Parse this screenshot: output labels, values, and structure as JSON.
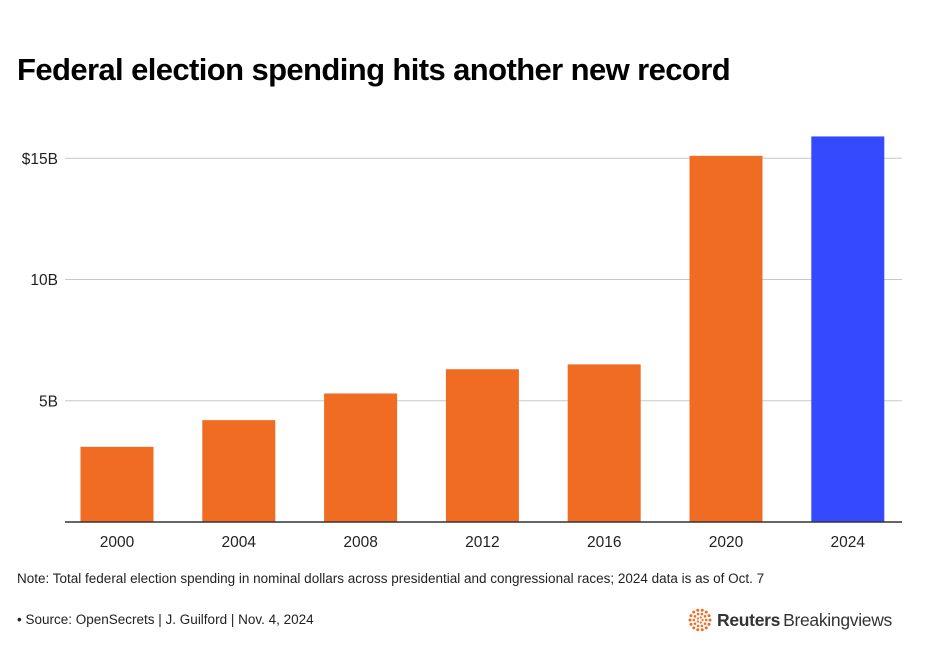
{
  "title": "Federal election spending hits another new record",
  "note": "Note: Total federal election spending in nominal dollars across presidential and congressional races; 2024 data is as of Oct. 7",
  "source": "• Source: OpenSecrets | J. Guilford | Nov. 4, 2024",
  "brand": {
    "name": "Reuters",
    "product": "Breakingviews",
    "logo_icon": "reuters-dot-logo-icon"
  },
  "colors": {
    "bar": "#EF6C22",
    "highlight": "#3549FF",
    "grid": "#c8c8c8",
    "axis": "#333333",
    "logo": "#EF6C22"
  },
  "chart_data": {
    "type": "bar",
    "title": "Federal election spending hits another new record",
    "xlabel": "",
    "ylabel": "",
    "categories": [
      "2000",
      "2004",
      "2008",
      "2012",
      "2016",
      "2020",
      "2024"
    ],
    "values": [
      3.1,
      4.2,
      5.3,
      6.3,
      6.5,
      15.1,
      15.9
    ],
    "highlight": "2024",
    "unit": "billion dollars",
    "ylim": [
      0,
      16
    ],
    "yticks": [
      {
        "value": 5,
        "label": "5B"
      },
      {
        "value": 10,
        "label": "10B"
      },
      {
        "value": 15,
        "label": "$15B"
      }
    ],
    "grid": true,
    "legend": "none"
  }
}
